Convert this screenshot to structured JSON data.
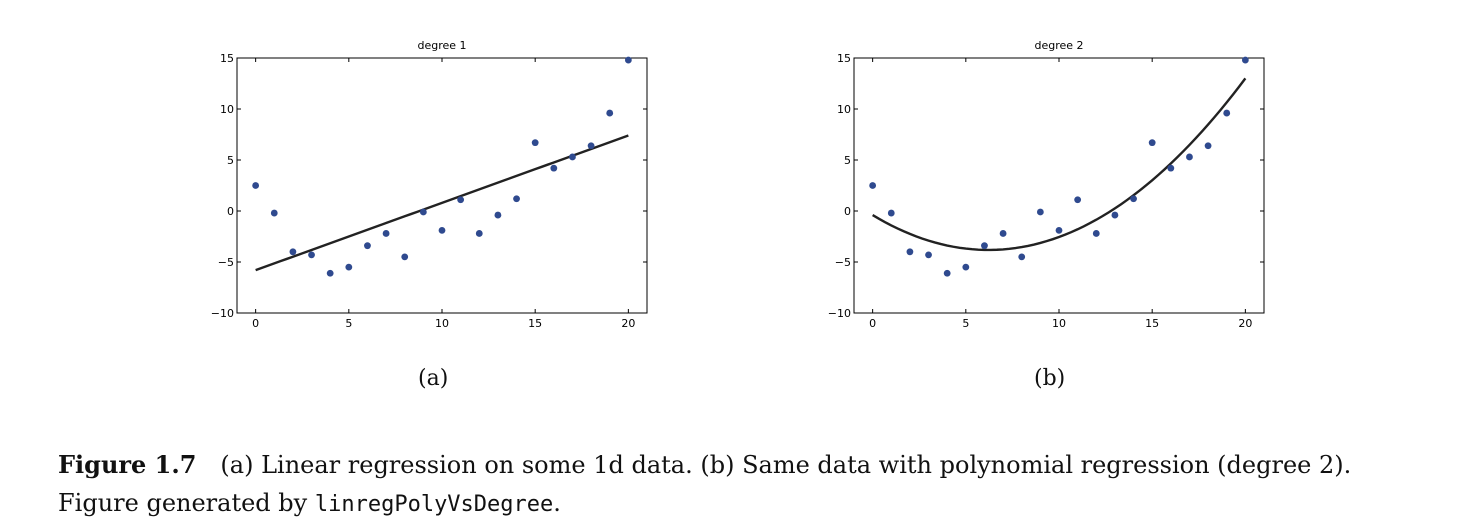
{
  "chart_data": [
    {
      "type": "scatter",
      "title": "degree 1",
      "xlim": [
        -1,
        21
      ],
      "ylim": [
        -10,
        15
      ],
      "xticks": [
        0,
        5,
        10,
        15,
        20
      ],
      "yticks": [
        -10,
        -5,
        0,
        5,
        10,
        15
      ],
      "grid": false,
      "x": [
        0,
        1,
        2,
        3,
        4,
        5,
        6,
        7,
        8,
        9,
        10,
        11,
        12,
        13,
        14,
        15,
        16,
        17,
        18,
        19,
        20
      ],
      "y": [
        2.5,
        -0.2,
        -4.0,
        -4.3,
        -6.1,
        -5.5,
        -3.4,
        -2.2,
        -4.5,
        -0.1,
        -1.9,
        1.1,
        -2.2,
        -0.4,
        1.2,
        6.7,
        4.2,
        5.3,
        6.4,
        9.6,
        14.8
      ],
      "fit": {
        "name": "degree 1",
        "x0": 0,
        "x1": 20,
        "coeffs": [
          -5.8,
          0.66
        ]
      }
    },
    {
      "type": "scatter",
      "title": "degree 2",
      "xlim": [
        -1,
        21
      ],
      "ylim": [
        -10,
        15
      ],
      "xticks": [
        0,
        5,
        10,
        15,
        20
      ],
      "yticks": [
        -10,
        -5,
        0,
        5,
        10,
        15
      ],
      "grid": false,
      "x": [
        0,
        1,
        2,
        3,
        4,
        5,
        6,
        7,
        8,
        9,
        10,
        11,
        12,
        13,
        14,
        15,
        16,
        17,
        18,
        19,
        20
      ],
      "y": [
        2.5,
        -0.2,
        -4.0,
        -4.3,
        -6.1,
        -5.5,
        -3.4,
        -2.2,
        -4.5,
        -0.1,
        -1.9,
        1.1,
        -2.2,
        -0.4,
        1.2,
        6.7,
        4.2,
        5.3,
        6.4,
        9.6,
        14.8
      ],
      "fit": {
        "name": "degree 2",
        "x0": 0,
        "x1": 20,
        "coeffs": [
          -0.4,
          -1.1,
          0.0885
        ]
      }
    }
  ],
  "subfigures": [
    "(a)",
    "(b)"
  ],
  "caption": {
    "label": "Figure 1.7",
    "line1": "(a) Linear regression on some 1d data. (b) Same data with polynomial regression (degree 2).",
    "line2_prefix": "Figure generated by ",
    "code": "linregPolyVsDegree",
    "line2_suffix": "."
  },
  "colors": {
    "points": "#2f4a8f",
    "fit_line": "#222222",
    "axes": "#000000"
  }
}
